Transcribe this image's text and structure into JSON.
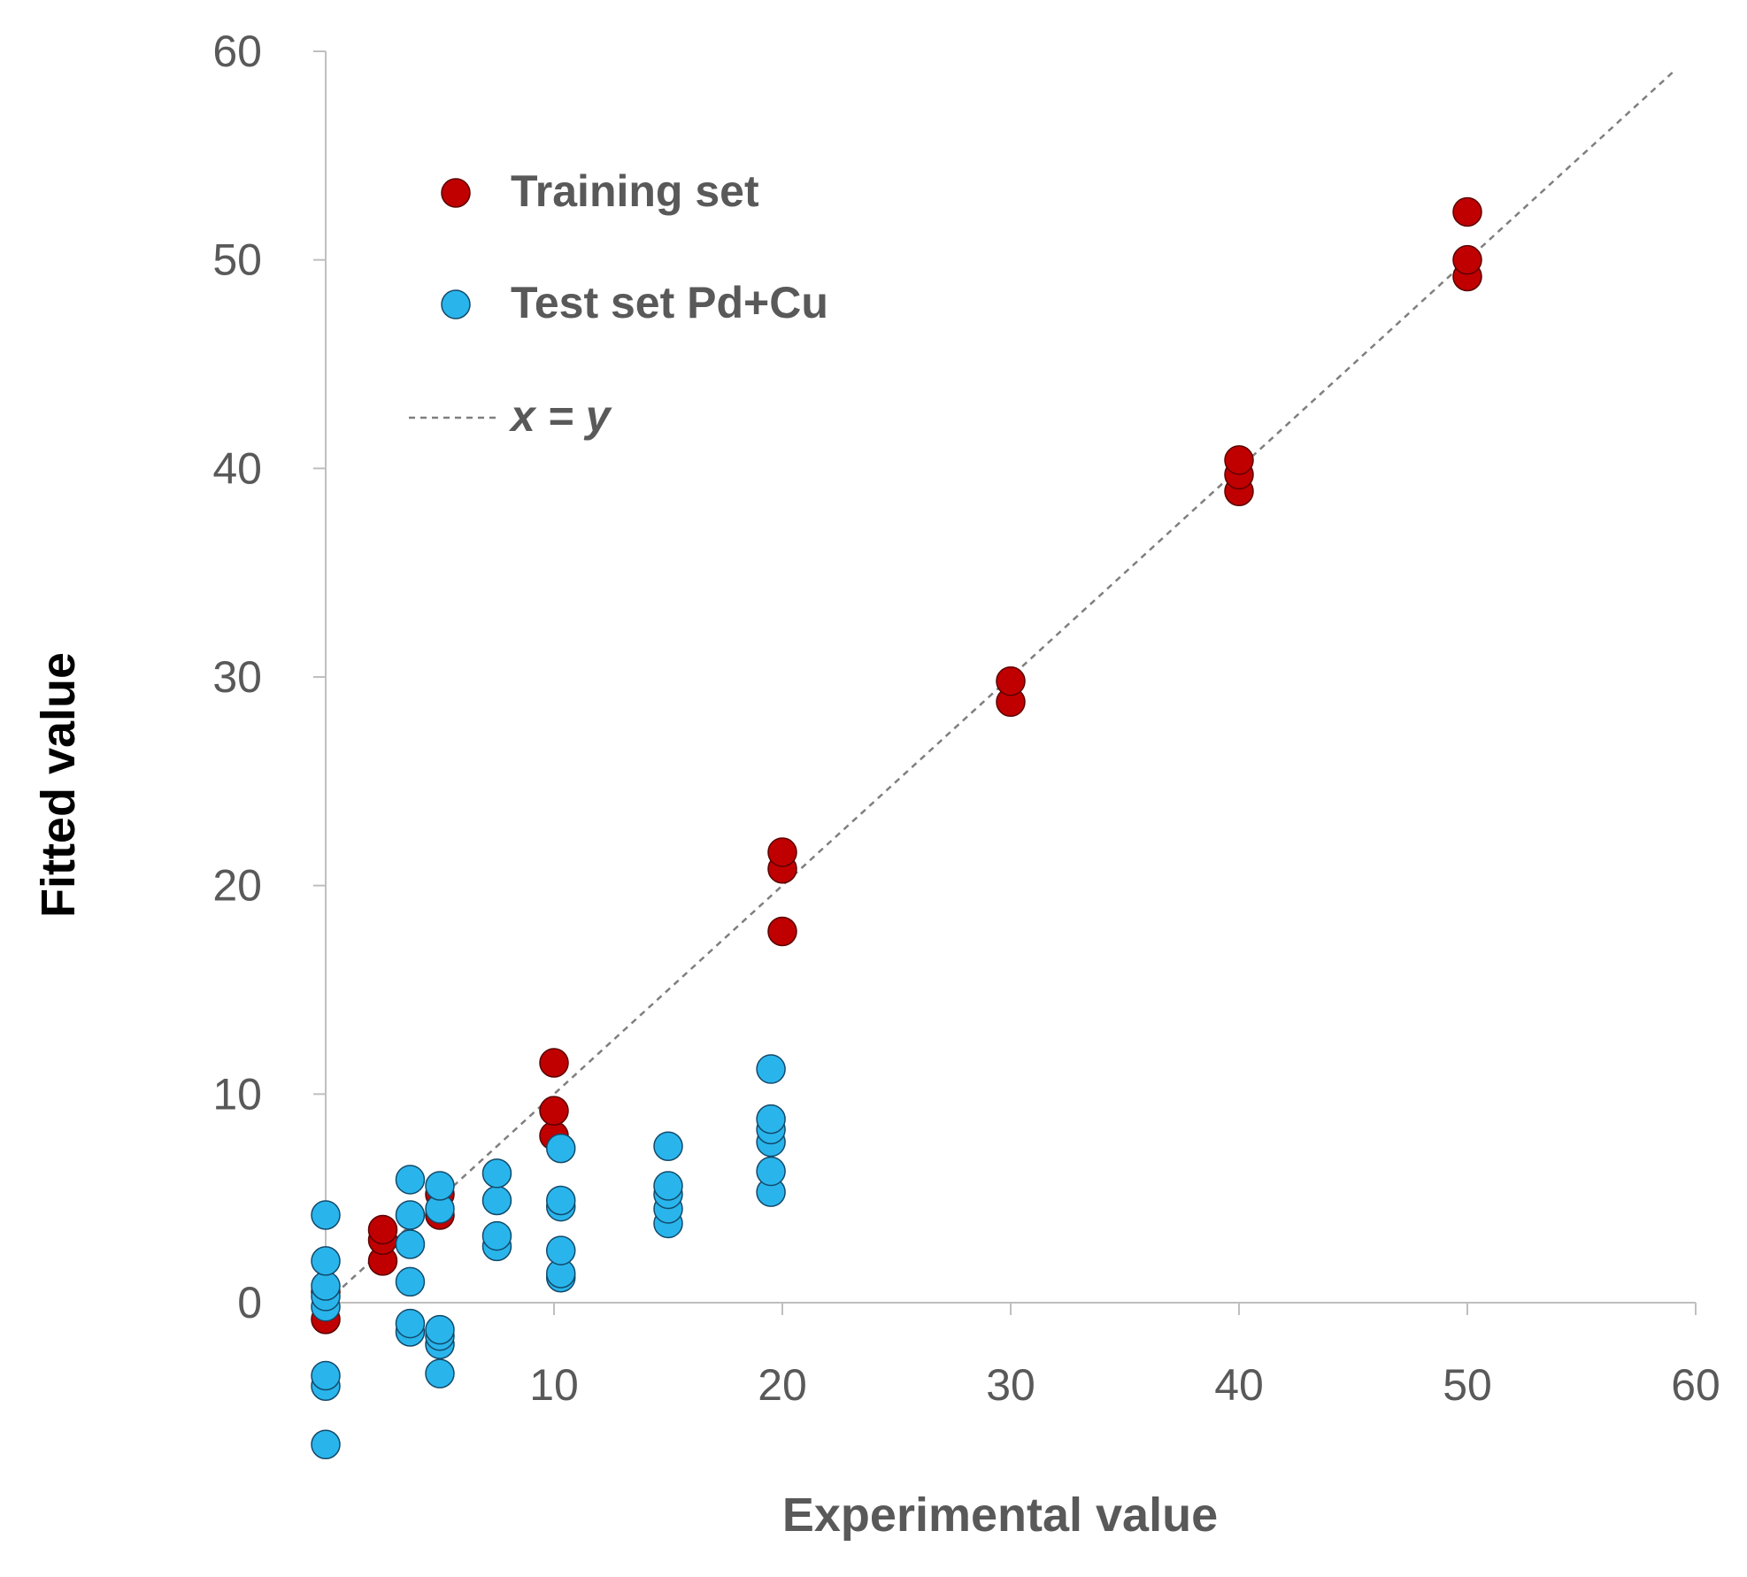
{
  "chart_data": {
    "type": "scatter",
    "title": "",
    "xlabel": "Experimental value",
    "ylabel": "Fitted value",
    "xlim": [
      0,
      60
    ],
    "ylim": [
      -7,
      60
    ],
    "xticks": [
      "10",
      "20",
      "30",
      "40",
      "50",
      "60"
    ],
    "yticks": [
      "0",
      "10",
      "20",
      "30",
      "40",
      "50",
      "60"
    ],
    "legend": {
      "placement": "top-left",
      "training_label": "Training set",
      "test_label": "Test set Pd+Cu",
      "line_label": "x = y"
    },
    "reference_line": {
      "name": "x = y",
      "from": [
        0,
        0
      ],
      "to": [
        59,
        59
      ],
      "color": "#7f7f7f"
    },
    "series": [
      {
        "name": "Training set",
        "color": "#c00000",
        "points": [
          [
            0,
            -0.8
          ],
          [
            0,
            0.5
          ],
          [
            2.5,
            2
          ],
          [
            2.5,
            3
          ],
          [
            2.5,
            3.5
          ],
          [
            5,
            4.2
          ],
          [
            5,
            5.2
          ],
          [
            10,
            8
          ],
          [
            10,
            9.2
          ],
          [
            10,
            11.5
          ],
          [
            20,
            17.8
          ],
          [
            20,
            20.8
          ],
          [
            20,
            21.6
          ],
          [
            30,
            28.8
          ],
          [
            30,
            29.8
          ],
          [
            40,
            38.9
          ],
          [
            40,
            39.7
          ],
          [
            40,
            40.4
          ],
          [
            50,
            49.2
          ],
          [
            50,
            50
          ],
          [
            50,
            52.3
          ]
        ]
      },
      {
        "name": "Test set Pd+Cu",
        "color": "#29b5ec",
        "points": [
          [
            0,
            -6.8
          ],
          [
            0,
            -4
          ],
          [
            0,
            -3.5
          ],
          [
            0,
            -0.2
          ],
          [
            0,
            0.3
          ],
          [
            0,
            0.8
          ],
          [
            0,
            2
          ],
          [
            0,
            4.2
          ],
          [
            3.7,
            -1.4
          ],
          [
            3.7,
            -1
          ],
          [
            3.7,
            1
          ],
          [
            3.7,
            2.8
          ],
          [
            3.7,
            4.2
          ],
          [
            3.7,
            5.9
          ],
          [
            5,
            -3.4
          ],
          [
            5,
            -2
          ],
          [
            5,
            -1.6
          ],
          [
            5,
            -1.3
          ],
          [
            5,
            4.5
          ],
          [
            5,
            5.6
          ],
          [
            7.5,
            2.7
          ],
          [
            7.5,
            3.2
          ],
          [
            7.5,
            4.9
          ],
          [
            7.5,
            6.2
          ],
          [
            10.3,
            1.2
          ],
          [
            10.3,
            1.4
          ],
          [
            10.3,
            2.5
          ],
          [
            10.3,
            4.6
          ],
          [
            10.3,
            4.9
          ],
          [
            10.3,
            7.4
          ],
          [
            15,
            3.8
          ],
          [
            15,
            4.5
          ],
          [
            15,
            5.2
          ],
          [
            15,
            5.6
          ],
          [
            15,
            7.5
          ],
          [
            19.5,
            5.3
          ],
          [
            19.5,
            6.3
          ],
          [
            19.5,
            7.7
          ],
          [
            19.5,
            8.3
          ],
          [
            19.5,
            8.8
          ],
          [
            19.5,
            11.2
          ]
        ]
      }
    ]
  }
}
